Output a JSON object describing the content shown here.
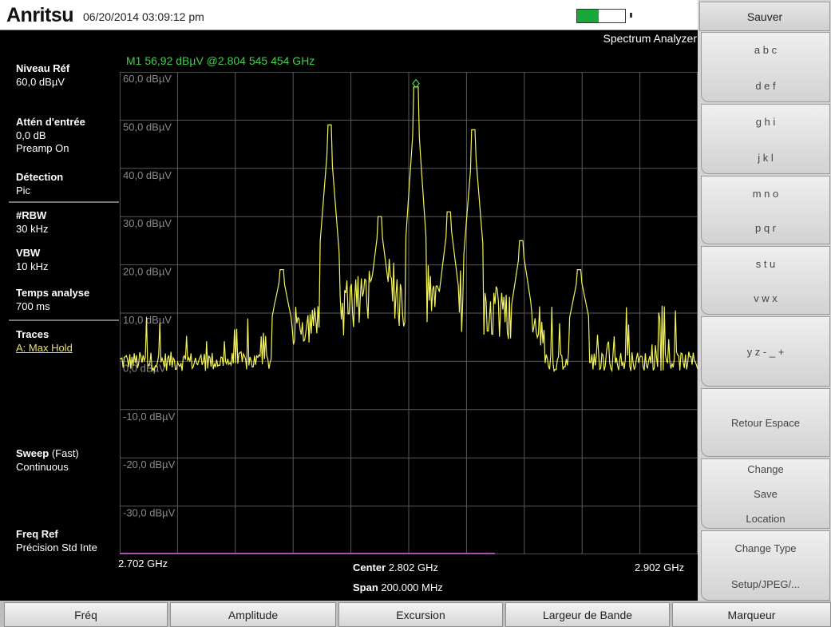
{
  "header": {
    "brand": "Anritsu",
    "datetime": "06/20/2014 03:09:12 pm",
    "mode": "Spectrum Analyzer",
    "battery_level": 0.45,
    "battery_color": "#1aa83a"
  },
  "left_panel": {
    "ref_level_label": "Niveau Réf",
    "ref_level_value": "60,0 dBµV",
    "atten_label": "Attén d'entrée",
    "atten_value": "0,0 dB",
    "preamp": "Preamp On",
    "detection_label": "Détection",
    "detection_value": "Pic",
    "rbw_label": "#RBW",
    "rbw_value": "30 kHz",
    "vbw_label": "VBW",
    "vbw_value": "10 kHz",
    "sweep_time_label": "Temps analyse",
    "sweep_time_value": "700 ms",
    "traces_label": "Traces",
    "traces_value": "A: Max Hold",
    "sweep_label": "Sweep",
    "sweep_speed": "(Fast)",
    "sweep_mode": "Continuous",
    "freq_ref_label": "Freq Ref",
    "freq_ref_value": "Précision Std Inte"
  },
  "marker": {
    "readout": "M1 56,92 dBµV @2.804 545 454 GHz"
  },
  "x_axis": {
    "start": "2.702 GHz",
    "stop": "2.902 GHz",
    "center_label": "Center",
    "center_value": "2.802 GHz",
    "span_label": "Span",
    "span_value": "200.000 MHz"
  },
  "chart_data": {
    "type": "line",
    "ylim": [
      -40,
      60
    ],
    "xlim": [
      2.702,
      2.902
    ],
    "y_tick_labels": [
      "60,0 dBµV",
      "50,0 dBµV",
      "40,0 dBµV",
      "30,0 dBµV",
      "20,0 dBµV",
      "10,0 dBµV",
      "0,0 dBµV",
      "-10,0 dBµV",
      "-20,0 dBµV",
      "-30,0 dBµV"
    ],
    "y_tick_values": [
      60,
      50,
      40,
      30,
      20,
      10,
      0,
      -10,
      -20,
      -30
    ],
    "trace_color": "#f2f25a",
    "peaks": [
      {
        "x": 2.7745,
        "y": 49
      },
      {
        "x": 2.8045,
        "y": 56.9
      },
      {
        "x": 2.8245,
        "y": 48
      },
      {
        "x": 2.792,
        "y": 30
      },
      {
        "x": 2.816,
        "y": 31
      },
      {
        "x": 2.841,
        "y": 25
      },
      {
        "x": 2.758,
        "y": 19
      },
      {
        "x": 2.861,
        "y": 19
      }
    ],
    "marker": {
      "x": 2.8045,
      "y": 56.92
    }
  },
  "right_menu": {
    "title": "Sauver",
    "buttons": [
      {
        "lines": [
          "a b c",
          "d e f"
        ]
      },
      {
        "lines": [
          "g h i",
          "j k l"
        ]
      },
      {
        "lines": [
          "m n o",
          "p q r"
        ]
      },
      {
        "lines": [
          "s t u",
          "v w x"
        ]
      },
      {
        "lines": [
          "y z - _ +"
        ]
      },
      {
        "lines": [
          "Retour Espace"
        ]
      },
      {
        "lines": [
          "Change",
          "Save",
          "Location"
        ]
      },
      {
        "lines": [
          "Change Type",
          "Setup/JPEG/..."
        ]
      }
    ]
  },
  "bottom_tabs": [
    "Fréq",
    "Amplitude",
    "Excursion",
    "Largeur de Bande",
    "Marqueur"
  ]
}
